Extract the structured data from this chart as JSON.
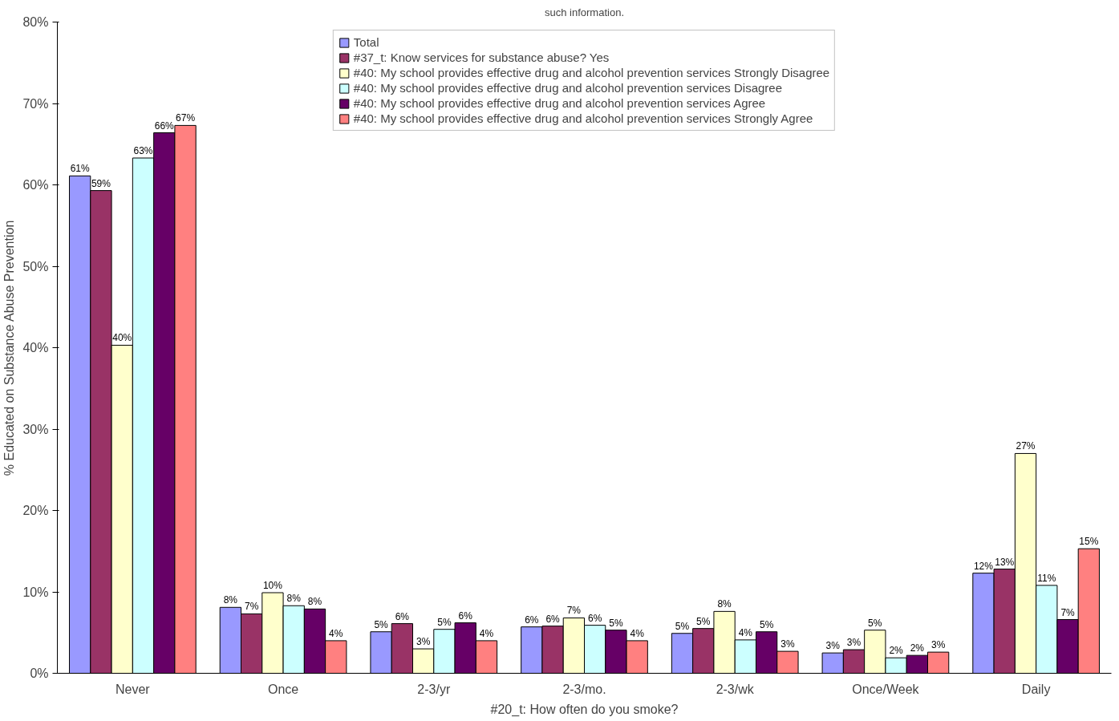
{
  "chart_data": {
    "type": "bar",
    "title": "such information.",
    "xlabel": "#20_t: How often do you smoke?",
    "ylabel": "% Educated on Substance Abuse Prevention",
    "categories": [
      "Never",
      "Once",
      "2-3/yr",
      "2-3/mo.",
      "2-3/wk",
      "Once/Week",
      "Daily"
    ],
    "series": [
      {
        "name": "Total",
        "color": "#9999ff",
        "values": [
          61.1,
          8.1,
          5.1,
          5.7,
          4.9,
          2.5,
          12.3
        ],
        "value_labels": [
          "61%",
          "8%",
          "5%",
          "6%",
          "5%",
          "3%",
          "12%"
        ]
      },
      {
        "name": "#37_t: Know services for substance abuse? Yes",
        "color": "#993366",
        "values": [
          59.3,
          7.3,
          6.1,
          5.8,
          5.5,
          2.9,
          12.8
        ],
        "value_labels": [
          "59%",
          "7%",
          "6%",
          "6%",
          "5%",
          "3%",
          "13%"
        ]
      },
      {
        "name": "#40: My school provides effective drug and alcohol prevention services Strongly Disagree",
        "color": "#ffffcc",
        "values": [
          40.3,
          9.9,
          3.0,
          6.8,
          7.6,
          5.3,
          27.0
        ],
        "value_labels": [
          "40%",
          "10%",
          "3%",
          "7%",
          "8%",
          "5%",
          "27%"
        ]
      },
      {
        "name": "#40: My school provides effective drug and alcohol prevention services Disagree",
        "color": "#ccffff",
        "values": [
          63.3,
          8.3,
          5.4,
          5.9,
          4.1,
          1.9,
          10.8
        ],
        "value_labels": [
          "63%",
          "8%",
          "5%",
          "6%",
          "4%",
          "2%",
          "11%"
        ]
      },
      {
        "name": "#40: My school provides effective drug and alcohol prevention services Agree",
        "color": "#660066",
        "values": [
          66.4,
          7.9,
          6.2,
          5.3,
          5.1,
          2.2,
          6.6
        ],
        "value_labels": [
          "66%",
          "8%",
          "6%",
          "5%",
          "5%",
          "2%",
          "7%"
        ]
      },
      {
        "name": "#40: My school provides effective drug and alcohol prevention services Strongly Agree",
        "color": "#ff8080",
        "values": [
          67.3,
          4.0,
          4.0,
          4.0,
          2.7,
          2.6,
          15.3
        ],
        "value_labels": [
          "67%",
          "4%",
          "4%",
          "4%",
          "3%",
          "3%",
          "15%"
        ]
      }
    ],
    "ylim": [
      0,
      80
    ],
    "yticks": [
      {
        "value": 0,
        "label": "0%"
      },
      {
        "value": 10,
        "label": "10%"
      },
      {
        "value": 20,
        "label": "20%"
      },
      {
        "value": 30,
        "label": "30%"
      },
      {
        "value": 40,
        "label": "40%"
      },
      {
        "value": 50,
        "label": "50%"
      },
      {
        "value": 60,
        "label": "60%"
      },
      {
        "value": 70,
        "label": "70%"
      },
      {
        "value": 80,
        "label": "80%"
      }
    ],
    "grid": false,
    "legend": "top"
  }
}
